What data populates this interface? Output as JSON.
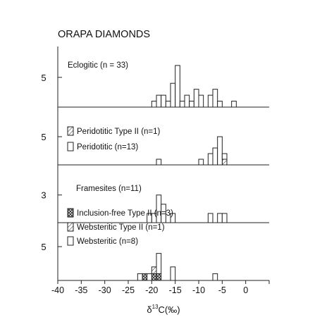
{
  "chart_data": {
    "type": "bar",
    "title": "ORAPA DIAMONDS",
    "xlabel_prefix": "δ",
    "xlabel_sup": "13",
    "xlabel_suffix": "C(‰)",
    "xlim": [
      -40,
      5
    ],
    "xticks": [
      -40,
      -35,
      -30,
      -25,
      -20,
      -15,
      -10,
      -5,
      0
    ],
    "bin_width": 1,
    "colors": {
      "bar_fill": "#ffffff",
      "bar_stroke": "#222222",
      "axis": "#222222",
      "hatch": "#444444"
    },
    "panels": [
      {
        "id": "eclogitic",
        "scale_label": "5",
        "scale_value": 5,
        "ymax": 9,
        "series": [
          {
            "name": "Eclogitic (n = 33)",
            "pattern": "none",
            "counts": {
              "-19.5": 1,
              "-18.5": 2,
              "-17.5": 2,
              "-16.5": 1,
              "-15.5": 4,
              "-14.5": 7,
              "-13.5": 1,
              "-12.5": 2,
              "-11.5": 1,
              "-10.5": 3,
              "-9.5": 2,
              "-7.5": 2,
              "-6.5": 3,
              "-5.5": 1,
              "-2.5": 1
            }
          }
        ]
      },
      {
        "id": "peridotitic",
        "scale_label": "5",
        "scale_value": 5,
        "ymax": 9,
        "series": [
          {
            "name": "Peridotitic Type II (n=1)",
            "pattern": "hatch",
            "counts": {
              "-4.5": 1
            }
          },
          {
            "name": "Peridotitic (n=13)",
            "pattern": "none",
            "counts": {
              "-18.5": 1,
              "-9.5": 1,
              "-7.5": 2,
              "-6.5": 3,
              "-5.5": 5,
              "-4.5": 1
            }
          }
        ]
      },
      {
        "id": "framesites",
        "scale_label": "3",
        "scale_value": 3,
        "ymax": 5.5,
        "series": [
          {
            "name": "Framesites (n=11)",
            "pattern": "none",
            "counts": {
              "-20.5": 1,
              "-19.5": 1,
              "-18.5": 3,
              "-17.5": 2,
              "-15.5": 1,
              "-7.5": 1,
              "-5.5": 1,
              "-4.5": 1
            }
          }
        ]
      },
      {
        "id": "websteritic",
        "scale_label": "5",
        "scale_value": 5,
        "ymax": 7.5,
        "series": [
          {
            "name": "Inclusion-free Type II (n=3)",
            "pattern": "crosshatch",
            "counts": {
              "-21.5": 1,
              "-19.5": 1,
              "-18.5": 1
            }
          },
          {
            "name": "Websteritic Type II (n=1)",
            "pattern": "hatch",
            "counts": {
              "-19.5": 1
            }
          },
          {
            "name": "Websteritic (n=8)",
            "pattern": "none",
            "counts": {
              "-22.5": 1,
              "-20.5": 1,
              "-18.5": 3,
              "-15.5": 2,
              "-6.5": 1
            }
          }
        ]
      }
    ]
  }
}
